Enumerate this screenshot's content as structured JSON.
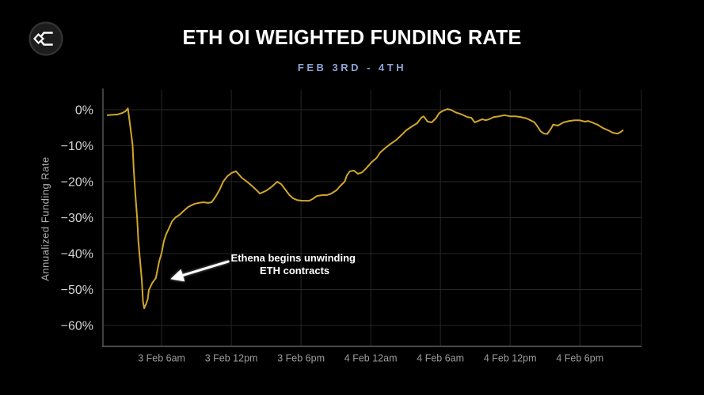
{
  "header": {
    "title": "ETH OI WEIGHTED FUNDING RATE",
    "subtitle": "FEB 3RD - 4TH",
    "logo_icon": "sigma-diamond-logo"
  },
  "colors": {
    "background": "#000000",
    "title": "#ffffff",
    "subtitle": "#8da4d4",
    "line": "#d2a62b",
    "grid": "#262626",
    "axis": "#565656",
    "y_tick_text": "#d4d4d4",
    "x_tick_text": "#9d9d9d",
    "annotation": "#ffffff"
  },
  "chart_data": {
    "type": "line",
    "title": "ETH OI WEIGHTED FUNDING RATE",
    "subtitle": "FEB 3RD - 4TH",
    "xlabel": "",
    "ylabel": "Annualized Funding Rate",
    "x_unit": "hours since 3 Feb 00:00",
    "xlim": [
      0.95,
      47.3
    ],
    "ylim": [
      -65.8,
      5.5
    ],
    "grid": true,
    "legend": false,
    "x_ticks": [
      {
        "hour": 6,
        "label": "3 Feb 6am"
      },
      {
        "hour": 12,
        "label": "3 Feb 12pm"
      },
      {
        "hour": 18,
        "label": "3 Feb 6pm"
      },
      {
        "hour": 24,
        "label": "4 Feb 12am"
      },
      {
        "hour": 30,
        "label": "4 Feb 6am"
      },
      {
        "hour": 36,
        "label": "4 Feb 12pm"
      },
      {
        "hour": 42,
        "label": "4 Feb 6pm"
      }
    ],
    "y_ticks": [
      {
        "value": 0,
        "label": "0%"
      },
      {
        "value": -10,
        "label": "−10%"
      },
      {
        "value": -20,
        "label": "−20%"
      },
      {
        "value": -30,
        "label": "−30%"
      },
      {
        "value": -40,
        "label": "−40%"
      },
      {
        "value": -50,
        "label": "−50%"
      },
      {
        "value": -60,
        "label": "−60%"
      }
    ],
    "series": [
      {
        "name": "ETH OI weighted funding rate",
        "color": "#d2a62b",
        "points": [
          [
            1.35,
            -1.5
          ],
          [
            2.2,
            -1.3
          ],
          [
            2.6,
            -0.9
          ],
          [
            2.9,
            -0.4
          ],
          [
            3.1,
            0.4
          ],
          [
            3.3,
            -4.6
          ],
          [
            3.5,
            -9.7
          ],
          [
            3.6,
            -16.7
          ],
          [
            3.75,
            -24.0
          ],
          [
            3.9,
            -30.5
          ],
          [
            4.0,
            -36.5
          ],
          [
            4.15,
            -42.0
          ],
          [
            4.3,
            -47.5
          ],
          [
            4.4,
            -53.4
          ],
          [
            4.5,
            -55.2
          ],
          [
            4.65,
            -54.1
          ],
          [
            4.8,
            -52.7
          ],
          [
            4.9,
            -50.1
          ],
          [
            5.2,
            -48.1
          ],
          [
            5.35,
            -47.5
          ],
          [
            5.5,
            -46.8
          ],
          [
            5.65,
            -44.4
          ],
          [
            5.8,
            -42.0
          ],
          [
            6.0,
            -39.8
          ],
          [
            6.2,
            -36.5
          ],
          [
            6.4,
            -34.5
          ],
          [
            6.6,
            -33.2
          ],
          [
            6.9,
            -31.0
          ],
          [
            7.2,
            -29.9
          ],
          [
            7.55,
            -29.2
          ],
          [
            7.9,
            -28.1
          ],
          [
            8.3,
            -27.0
          ],
          [
            8.8,
            -26.2
          ],
          [
            9.2,
            -25.9
          ],
          [
            9.6,
            -25.7
          ],
          [
            10.0,
            -25.9
          ],
          [
            10.3,
            -25.7
          ],
          [
            10.6,
            -24.4
          ],
          [
            11.0,
            -22.2
          ],
          [
            11.3,
            -20.0
          ],
          [
            11.65,
            -18.5
          ],
          [
            12.0,
            -17.6
          ],
          [
            12.4,
            -17.1
          ],
          [
            12.9,
            -18.9
          ],
          [
            13.35,
            -20.0
          ],
          [
            13.75,
            -21.1
          ],
          [
            14.25,
            -22.6
          ],
          [
            14.45,
            -23.3
          ],
          [
            14.95,
            -22.6
          ],
          [
            15.45,
            -21.5
          ],
          [
            15.95,
            -20.0
          ],
          [
            16.3,
            -20.7
          ],
          [
            16.65,
            -22.2
          ],
          [
            17.0,
            -23.7
          ],
          [
            17.3,
            -24.6
          ],
          [
            17.65,
            -25.1
          ],
          [
            18.1,
            -25.3
          ],
          [
            18.7,
            -25.3
          ],
          [
            19.0,
            -24.8
          ],
          [
            19.35,
            -24.0
          ],
          [
            19.85,
            -23.7
          ],
          [
            20.25,
            -23.7
          ],
          [
            20.6,
            -23.3
          ],
          [
            21.05,
            -22.4
          ],
          [
            21.4,
            -21.1
          ],
          [
            21.75,
            -20.0
          ],
          [
            21.95,
            -18.2
          ],
          [
            22.2,
            -17.1
          ],
          [
            22.55,
            -16.9
          ],
          [
            22.9,
            -17.8
          ],
          [
            23.25,
            -17.4
          ],
          [
            23.6,
            -16.3
          ],
          [
            23.9,
            -15.2
          ],
          [
            24.1,
            -14.5
          ],
          [
            24.5,
            -13.4
          ],
          [
            24.8,
            -11.9
          ],
          [
            25.3,
            -10.5
          ],
          [
            25.7,
            -9.5
          ],
          [
            26.2,
            -8.4
          ],
          [
            26.65,
            -7.0
          ],
          [
            27.05,
            -5.7
          ],
          [
            27.55,
            -4.6
          ],
          [
            28.0,
            -3.7
          ],
          [
            28.35,
            -2.2
          ],
          [
            28.55,
            -1.8
          ],
          [
            28.9,
            -3.3
          ],
          [
            29.25,
            -3.5
          ],
          [
            29.6,
            -2.4
          ],
          [
            29.9,
            -0.9
          ],
          [
            30.25,
            -0.2
          ],
          [
            30.6,
            0.2
          ],
          [
            30.9,
            0.0
          ],
          [
            31.3,
            -0.7
          ],
          [
            31.85,
            -1.3
          ],
          [
            32.3,
            -2.0
          ],
          [
            32.65,
            -2.2
          ],
          [
            32.95,
            -3.5
          ],
          [
            33.25,
            -3.1
          ],
          [
            33.6,
            -2.6
          ],
          [
            33.9,
            -2.9
          ],
          [
            34.2,
            -2.6
          ],
          [
            34.6,
            -2.0
          ],
          [
            35.05,
            -1.8
          ],
          [
            35.5,
            -1.5
          ],
          [
            36.0,
            -1.8
          ],
          [
            36.45,
            -1.8
          ],
          [
            36.9,
            -2.0
          ],
          [
            37.4,
            -2.4
          ],
          [
            37.75,
            -2.9
          ],
          [
            38.1,
            -3.5
          ],
          [
            38.35,
            -4.6
          ],
          [
            38.6,
            -5.9
          ],
          [
            38.9,
            -6.6
          ],
          [
            39.2,
            -6.7
          ],
          [
            39.5,
            -5.3
          ],
          [
            39.7,
            -4.1
          ],
          [
            40.1,
            -4.4
          ],
          [
            40.6,
            -3.5
          ],
          [
            41.1,
            -3.1
          ],
          [
            41.55,
            -2.9
          ],
          [
            41.95,
            -2.9
          ],
          [
            42.2,
            -3.1
          ],
          [
            42.45,
            -3.3
          ],
          [
            42.7,
            -3.1
          ],
          [
            43.05,
            -3.5
          ],
          [
            43.55,
            -4.2
          ],
          [
            44.0,
            -5.1
          ],
          [
            44.45,
            -5.7
          ],
          [
            44.85,
            -6.4
          ],
          [
            45.25,
            -6.6
          ],
          [
            45.5,
            -6.2
          ],
          [
            45.7,
            -5.7
          ]
        ]
      }
    ],
    "annotation": {
      "lines": [
        "Ethena begins unwinding",
        "ETH contracts"
      ],
      "text_center": {
        "hour": 17.45,
        "value": -44.0
      },
      "arrow": {
        "from": {
          "hour": 11.73,
          "value": -42.2
        },
        "to": {
          "hour": 7.05,
          "value": -46.8
        }
      }
    }
  }
}
